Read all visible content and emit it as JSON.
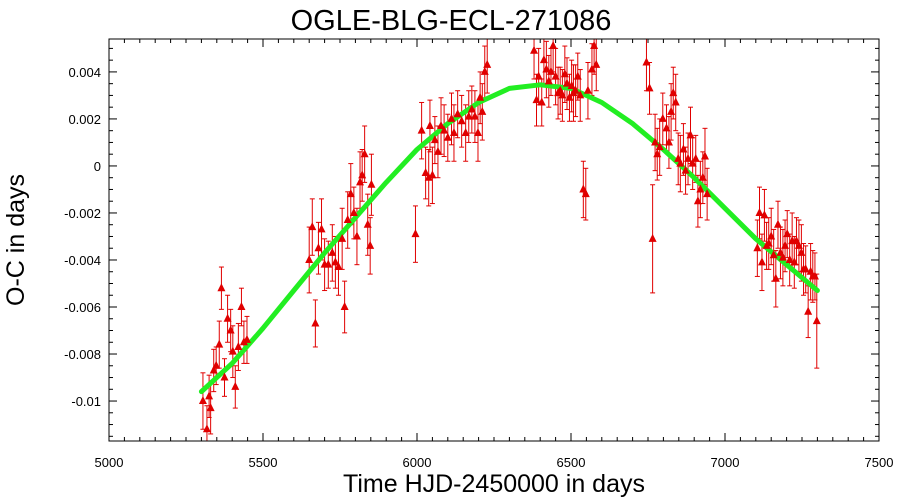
{
  "chart_data": {
    "type": "scatter",
    "title": "OGLE-BLG-ECL-271086",
    "xlabel": "Time HJD-2450000 in days",
    "ylabel": "O-C in days",
    "xlim": [
      5000,
      7500
    ],
    "ylim": [
      -0.0117,
      0.0054
    ],
    "x_ticks": [
      5000,
      5500,
      6000,
      6500,
      7000,
      7500
    ],
    "x_tick_labels": [
      "5000",
      "5500",
      "6000",
      "6500",
      "7000",
      "7500"
    ],
    "y_ticks": [
      0.004,
      0.002,
      0,
      -0.002,
      -0.004,
      -0.006,
      -0.008,
      -0.01
    ],
    "y_tick_labels": [
      "0.004",
      "0.002",
      "0",
      "-0.002",
      "-0.004",
      "-0.006",
      "-0.008",
      "-0.01"
    ],
    "grid": false,
    "colors": {
      "points": "#e00000",
      "fit": "#22ee22",
      "frame": "#000000"
    },
    "series": [
      {
        "marker": "triangle",
        "points": [
          [
            5305,
            -0.01,
            0.0012
          ],
          [
            5318,
            -0.0112,
            0.001
          ],
          [
            5325,
            -0.0098,
            0.0009
          ],
          [
            5330,
            -0.0103,
            0.0011
          ],
          [
            5340,
            -0.0087,
            0.0009
          ],
          [
            5348,
            -0.0085,
            0.0008
          ],
          [
            5358,
            -0.0076,
            0.001
          ],
          [
            5365,
            -0.0052,
            0.0009
          ],
          [
            5375,
            -0.009,
            0.0008
          ],
          [
            5385,
            -0.0065,
            0.001
          ],
          [
            5395,
            -0.007,
            0.0009
          ],
          [
            5402,
            -0.0079,
            0.0011
          ],
          [
            5410,
            -0.0094,
            0.0009
          ],
          [
            5420,
            -0.0077,
            0.001
          ],
          [
            5430,
            -0.006,
            0.0008
          ],
          [
            5438,
            -0.0075,
            0.0009
          ],
          [
            5448,
            -0.0074,
            0.001
          ],
          [
            5650,
            -0.004,
            0.0014
          ],
          [
            5660,
            -0.0026,
            0.0012
          ],
          [
            5670,
            -0.0067,
            0.001
          ],
          [
            5680,
            -0.0035,
            0.0011
          ],
          [
            5690,
            -0.0027,
            0.0013
          ],
          [
            5700,
            -0.0042,
            0.0011
          ],
          [
            5712,
            -0.0042,
            0.001
          ],
          [
            5725,
            -0.0037,
            0.0012
          ],
          [
            5735,
            -0.0041,
            0.0011
          ],
          [
            5745,
            -0.0043,
            0.0012
          ],
          [
            5757,
            -0.0031,
            0.0013
          ],
          [
            5765,
            -0.006,
            0.0011
          ],
          [
            5775,
            -0.0023,
            0.0012
          ],
          [
            5785,
            -0.0012,
            0.0013
          ],
          [
            5795,
            -0.002,
            0.0011
          ],
          [
            5805,
            -0.003,
            0.0012
          ],
          [
            5815,
            -0.0007,
            0.0013
          ],
          [
            5822,
            -0.0004,
            0.0011
          ],
          [
            5830,
            0.0005,
            0.0012
          ],
          [
            5840,
            -0.0025,
            0.0013
          ],
          [
            5848,
            -0.0034,
            0.0012
          ],
          [
            5852,
            -0.0008,
            0.0013
          ],
          [
            5995,
            -0.0029,
            0.0012
          ],
          [
            6015,
            0.0015,
            0.0012
          ],
          [
            6028,
            -0.0003,
            0.0011
          ],
          [
            6038,
            -0.0005,
            0.0012
          ],
          [
            6042,
            0.0017,
            0.0011
          ],
          [
            6050,
            -0.0004,
            0.0012
          ],
          [
            6058,
            0.0011,
            0.001
          ],
          [
            6068,
            0.0006,
            0.0011
          ],
          [
            6078,
            0.0017,
            0.0012
          ],
          [
            6088,
            0.0015,
            0.0011
          ],
          [
            6100,
            0.0012,
            0.001
          ],
          [
            6112,
            0.002,
            0.0011
          ],
          [
            6120,
            0.0014,
            0.0012
          ],
          [
            6132,
            0.0022,
            0.001
          ],
          [
            6145,
            0.0019,
            0.0011
          ],
          [
            6158,
            0.0014,
            0.0012
          ],
          [
            6168,
            0.0021,
            0.0011
          ],
          [
            6178,
            0.0024,
            0.001
          ],
          [
            6188,
            0.0021,
            0.0011
          ],
          [
            6198,
            0.0014,
            0.0012
          ],
          [
            6205,
            0.0029,
            0.0011
          ],
          [
            6212,
            0.0023,
            0.0012
          ],
          [
            6220,
            0.004,
            0.0011
          ],
          [
            6228,
            0.0043,
            0.0012
          ],
          [
            6380,
            0.0049,
            0.0012
          ],
          [
            6388,
            0.0028,
            0.0011
          ],
          [
            6395,
            0.0038,
            0.0012
          ],
          [
            6405,
            0.0027,
            0.001
          ],
          [
            6412,
            0.0045,
            0.0011
          ],
          [
            6420,
            0.0041,
            0.0012
          ],
          [
            6428,
            0.0036,
            0.0011
          ],
          [
            6435,
            0.004,
            0.001
          ],
          [
            6442,
            0.0051,
            0.0011
          ],
          [
            6450,
            0.0038,
            0.0012
          ],
          [
            6458,
            0.0031,
            0.0011
          ],
          [
            6465,
            0.0032,
            0.001
          ],
          [
            6472,
            0.003,
            0.0011
          ],
          [
            6480,
            0.0039,
            0.0012
          ],
          [
            6487,
            0.0035,
            0.0011
          ],
          [
            6495,
            0.0029,
            0.001
          ],
          [
            6502,
            0.0034,
            0.0011
          ],
          [
            6508,
            0.0031,
            0.0012
          ],
          [
            6515,
            0.0032,
            0.0011
          ],
          [
            6522,
            0.0038,
            0.001
          ],
          [
            6530,
            0.003,
            0.0011
          ],
          [
            6540,
            -0.001,
            0.0012
          ],
          [
            6548,
            -0.0012,
            0.0011
          ],
          [
            6555,
            0.0032,
            0.0012
          ],
          [
            6568,
            0.0041,
            0.0011
          ],
          [
            6575,
            0.0051,
            0.0012
          ],
          [
            6582,
            0.0043,
            0.0011
          ],
          [
            6745,
            0.0044,
            0.0012
          ],
          [
            6755,
            0.0033,
            0.0011
          ],
          [
            6765,
            -0.0031,
            0.0023
          ],
          [
            6773,
            0.001,
            0.0012
          ],
          [
            6780,
            0.0005,
            0.0011
          ],
          [
            6788,
            0.0008,
            0.0012
          ],
          [
            6798,
            0.002,
            0.0011
          ],
          [
            6810,
            0.0016,
            0.001
          ],
          [
            6818,
            0.001,
            0.0011
          ],
          [
            6825,
            0.0023,
            0.0012
          ],
          [
            6832,
            0.0031,
            0.0011
          ],
          [
            6840,
            0.0027,
            0.0012
          ],
          [
            6848,
            0.0003,
            0.0011
          ],
          [
            6855,
            0.0001,
            0.0012
          ],
          [
            6865,
            0.0007,
            0.0011
          ],
          [
            6872,
            -0.0002,
            0.001
          ],
          [
            6880,
            0.0003,
            0.0011
          ],
          [
            6888,
            0.0013,
            0.0012
          ],
          [
            6895,
            0.0001,
            0.0011
          ],
          [
            6905,
            0.0003,
            0.001
          ],
          [
            6912,
            -0.0015,
            0.0011
          ],
          [
            6920,
            -0.001,
            0.0012
          ],
          [
            6928,
            -0.0005,
            0.0011
          ],
          [
            6935,
            0.0004,
            0.0012
          ],
          [
            6942,
            -0.0012,
            0.0011
          ],
          [
            7105,
            -0.0035,
            0.0012
          ],
          [
            7112,
            -0.002,
            0.0011
          ],
          [
            7120,
            -0.0041,
            0.0012
          ],
          [
            7128,
            -0.0021,
            0.0011
          ],
          [
            7135,
            -0.0034,
            0.001
          ],
          [
            7142,
            -0.0033,
            0.0011
          ],
          [
            7150,
            -0.003,
            0.0012
          ],
          [
            7158,
            -0.0038,
            0.0011
          ],
          [
            7165,
            -0.0048,
            0.0012
          ],
          [
            7172,
            -0.0025,
            0.001
          ],
          [
            7180,
            -0.0037,
            0.0011
          ],
          [
            7188,
            -0.0039,
            0.0012
          ],
          [
            7195,
            -0.0034,
            0.0011
          ],
          [
            7202,
            -0.0029,
            0.001
          ],
          [
            7210,
            -0.004,
            0.0011
          ],
          [
            7218,
            -0.0032,
            0.0012
          ],
          [
            7225,
            -0.0041,
            0.0011
          ],
          [
            7232,
            -0.0032,
            0.001
          ],
          [
            7240,
            -0.0034,
            0.0011
          ],
          [
            7248,
            -0.0037,
            0.0012
          ],
          [
            7255,
            -0.0044,
            0.0011
          ],
          [
            7262,
            -0.0044,
            0.001
          ],
          [
            7270,
            -0.0062,
            0.0011
          ],
          [
            7278,
            -0.0045,
            0.0012
          ],
          [
            7285,
            -0.0047,
            0.0011
          ],
          [
            7292,
            -0.0047,
            0.001
          ],
          [
            7298,
            -0.0066,
            0.002
          ]
        ]
      }
    ],
    "fit": {
      "type": "line",
      "x": [
        5300,
        5400,
        5500,
        5600,
        5700,
        5800,
        5900,
        6000,
        6100,
        6200,
        6300,
        6400,
        6500,
        6600,
        6700,
        6800,
        6900,
        7000,
        7100,
        7200,
        7300
      ],
      "y": [
        -0.0096,
        -0.0084,
        -0.0069,
        -0.0053,
        -0.0037,
        -0.0022,
        -0.0007,
        0.0007,
        0.0018,
        0.0027,
        0.0033,
        0.00345,
        0.0033,
        0.0027,
        0.0018,
        0.0007,
        -0.0005,
        -0.0018,
        -0.0031,
        -0.0042,
        -0.0053
      ]
    }
  }
}
